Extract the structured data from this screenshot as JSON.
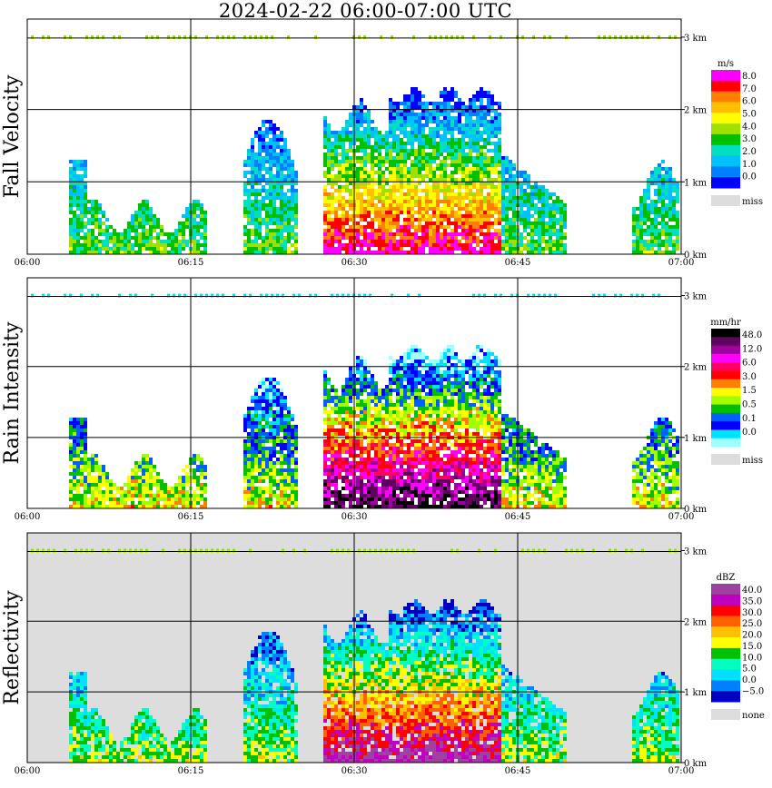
{
  "title": "2024-02-22  06:00-07:00 UTC",
  "chart_data": [
    {
      "type": "heatmap",
      "ylabel": "Fall Velocity",
      "x_ticks": [
        "06:00",
        "06:15",
        "06:30",
        "06:45",
        "07:00"
      ],
      "y_ticks": [
        "0 km",
        "1 km",
        "2 km",
        "3 km"
      ],
      "ylim_km": [
        0,
        3.2
      ],
      "legend": {
        "unit": "m/s",
        "labels": [
          "8.0",
          "7.0",
          "6.0",
          "5.0",
          "4.0",
          "3.0",
          "2.0",
          "1.0",
          "0.0"
        ],
        "colors": [
          "#ff00ff",
          "#ff0000",
          "#ff8000",
          "#ffc000",
          "#ffff00",
          "#a0e000",
          "#00c000",
          "#00e0c0",
          "#00c0ff",
          "#0080ff",
          "#0000ff"
        ],
        "miss_label": "miss",
        "miss_color": "#dddddd"
      },
      "background": "#ffffff"
    },
    {
      "type": "heatmap",
      "ylabel": "Rain Intensity",
      "x_ticks": [
        "06:00",
        "06:15",
        "06:30",
        "06:45",
        "07:00"
      ],
      "y_ticks": [
        "0 km",
        "1 km",
        "2 km",
        "3 km"
      ],
      "ylim_km": [
        0,
        3.2
      ],
      "legend": {
        "unit": "mm/hr",
        "labels": [
          "48.0",
          "12.0",
          "6.0",
          "3.0",
          "1.5",
          "0.5",
          "0.1",
          "0.0"
        ],
        "colors": [
          "#000000",
          "#600060",
          "#a000a0",
          "#ff00ff",
          "#ff0060",
          "#ff0000",
          "#ff8000",
          "#ffff00",
          "#a0ff00",
          "#00c000",
          "#0060ff",
          "#0000ff",
          "#00e0ff",
          "#a0ffff"
        ],
        "miss_label": "miss",
        "miss_color": "#dddddd"
      },
      "background": "#ffffff"
    },
    {
      "type": "heatmap",
      "ylabel": "Reflectivity",
      "x_ticks": [
        "06:00",
        "06:15",
        "06:30",
        "06:45",
        "07:00"
      ],
      "y_ticks": [
        "0 km",
        "1 km",
        "2 km",
        "3 km"
      ],
      "ylim_km": [
        0,
        3.2
      ],
      "legend": {
        "unit": "dBZ",
        "labels": [
          "40.0",
          "35.0",
          "30.0",
          "25.0",
          "20.0",
          "15.0",
          "10.0",
          "5.0",
          "0.0",
          "−5.0"
        ],
        "colors": [
          "#a040a0",
          "#c000c0",
          "#ff0000",
          "#ff6000",
          "#ffc000",
          "#ffff00",
          "#00c000",
          "#00ffc0",
          "#00e0ff",
          "#0080ff",
          "#0000c0"
        ],
        "miss_label": "none",
        "miss_color": "#dddddd"
      },
      "background": "#dddddd"
    }
  ]
}
